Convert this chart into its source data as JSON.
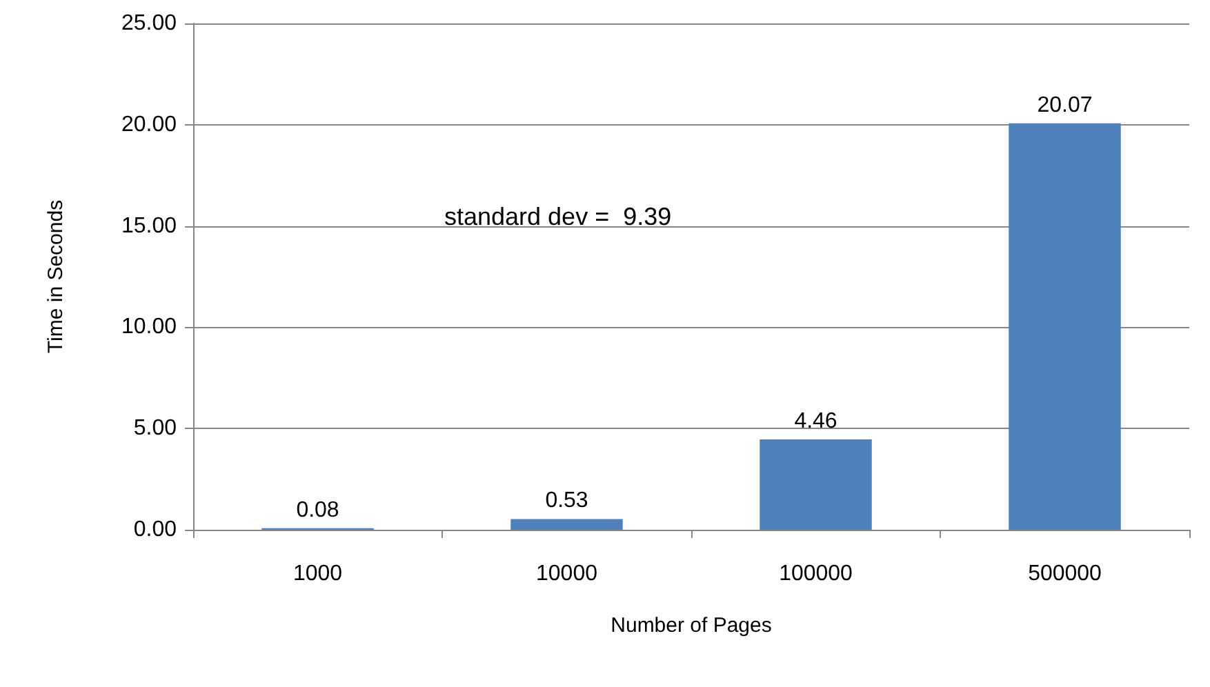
{
  "chart_data": {
    "type": "bar",
    "xlabel": "Number of Pages",
    "ylabel": "Time in Seconds",
    "annotations": [
      "standard dev =  9.39"
    ],
    "categories": [
      "1000",
      "10000",
      "100000",
      "500000"
    ],
    "values": [
      0.08,
      0.53,
      4.46,
      20.07
    ],
    "color": "#4f81bd",
    "ylim": [
      0,
      25
    ],
    "yticks": [
      {
        "value": 0,
        "label": "0.00"
      },
      {
        "value": 5,
        "label": "5.00"
      },
      {
        "value": 10,
        "label": "10.00"
      },
      {
        "value": 15,
        "label": "15.00"
      },
      {
        "value": 20,
        "label": "20.00"
      },
      {
        "value": 25,
        "label": "25.00"
      }
    ],
    "grid": "y",
    "data_labels": true
  }
}
